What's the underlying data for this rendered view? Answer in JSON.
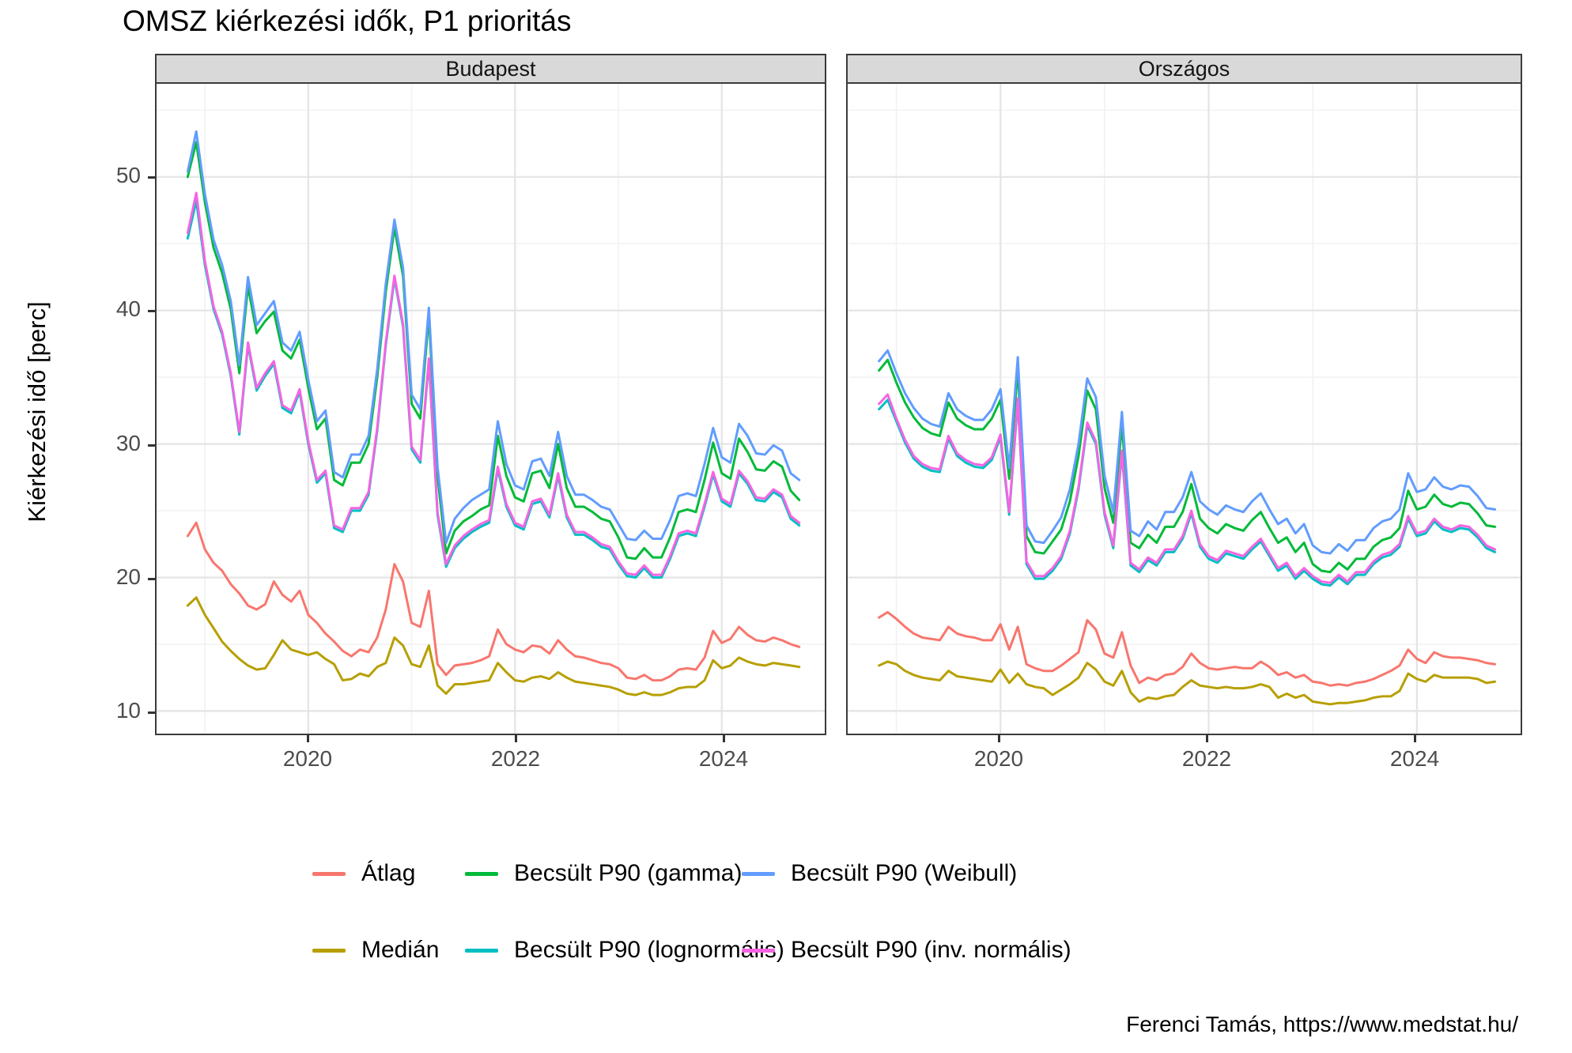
{
  "title": "OMSZ kiérkezési idők, P1 prioritás",
  "caption": "Ferenci Tamás, https://www.medstat.hu/",
  "y_axis": {
    "label": "Kiérkezési idő [perc]",
    "ticks": [
      10,
      20,
      30,
      40,
      50
    ],
    "minor_ticks": [
      15,
      25,
      35,
      45,
      55
    ],
    "range": [
      8.3,
      57
    ]
  },
  "x_axis": {
    "ticks": [
      2020,
      2022,
      2024
    ],
    "minor_ticks": [
      2019,
      2021,
      2023
    ]
  },
  "legend": {
    "items": [
      {
        "key": "atlag",
        "label": "Átlag",
        "color": "#F8766D"
      },
      {
        "key": "median",
        "label": "Medián",
        "color": "#B79F00"
      },
      {
        "key": "gamma",
        "label": "Becsült P90 (gamma)",
        "color": "#00BA38"
      },
      {
        "key": "lognormalis",
        "label": "Becsült P90 (lognormális)",
        "color": "#00BFC4"
      },
      {
        "key": "weibull",
        "label": "Becsült P90 (Weibull)",
        "color": "#619CFF"
      },
      {
        "key": "invnormalis",
        "label": "Becsült P90 (inv. normális)",
        "color": "#F564E3"
      }
    ]
  },
  "chart_data": {
    "type": "line",
    "title": "OMSZ kiérkezési idők, P1 prioritás",
    "ylabel": "Kiérkezési idő [perc]",
    "ylim": [
      8.3,
      57
    ],
    "grid": true,
    "legend_position": "bottom",
    "series_order": [
      "atlag",
      "median",
      "gamma",
      "lognormalis",
      "weibull",
      "invnormalis"
    ],
    "months": [
      "2018-11",
      "2018-12",
      "2019-01",
      "2019-02",
      "2019-03",
      "2019-04",
      "2019-05",
      "2019-06",
      "2019-07",
      "2019-08",
      "2019-09",
      "2019-10",
      "2019-11",
      "2019-12",
      "2020-01",
      "2020-02",
      "2020-03",
      "2020-04",
      "2020-05",
      "2020-06",
      "2020-07",
      "2020-08",
      "2020-09",
      "2020-10",
      "2020-11",
      "2020-12",
      "2021-01",
      "2021-02",
      "2021-03",
      "2021-04",
      "2021-05",
      "2021-06",
      "2021-07",
      "2021-08",
      "2021-09",
      "2021-10",
      "2021-11",
      "2021-12",
      "2022-01",
      "2022-02",
      "2022-03",
      "2022-04",
      "2022-05",
      "2022-06",
      "2022-07",
      "2022-08",
      "2022-09",
      "2022-10",
      "2022-11",
      "2022-12",
      "2023-01",
      "2023-02",
      "2023-03",
      "2023-04",
      "2023-05",
      "2023-06",
      "2023-07",
      "2023-08",
      "2023-09",
      "2023-10",
      "2023-11",
      "2023-12",
      "2024-01",
      "2024-02",
      "2024-03",
      "2024-04",
      "2024-05",
      "2024-06",
      "2024-07",
      "2024-08",
      "2024-09",
      "2024-10"
    ],
    "facets": [
      {
        "name": "Budapest",
        "series": {
          "atlag": [
            23.1,
            24.1,
            22.1,
            21.1,
            20.5,
            19.5,
            18.8,
            17.9,
            17.6,
            18.0,
            19.7,
            18.7,
            18.2,
            19.0,
            17.2,
            16.6,
            15.8,
            15.2,
            14.5,
            14.1,
            14.6,
            14.4,
            15.5,
            17.6,
            21.0,
            19.7,
            16.6,
            16.3,
            19.0,
            13.5,
            12.7,
            13.4,
            13.5,
            13.6,
            13.8,
            14.1,
            16.1,
            15.0,
            14.6,
            14.4,
            14.9,
            14.8,
            14.3,
            15.3,
            14.6,
            14.1,
            14.0,
            13.8,
            13.6,
            13.5,
            13.2,
            12.5,
            12.4,
            12.7,
            12.3,
            12.3,
            12.6,
            13.1,
            13.2,
            13.1,
            14.0,
            16.0,
            15.1,
            15.4,
            16.3,
            15.7,
            15.3,
            15.2,
            15.5,
            15.3,
            15.0,
            14.8
          ],
          "median": [
            17.9,
            18.5,
            17.2,
            16.2,
            15.2,
            14.5,
            13.9,
            13.4,
            13.1,
            13.2,
            14.2,
            15.3,
            14.6,
            14.4,
            14.2,
            14.4,
            13.9,
            13.5,
            12.3,
            12.4,
            12.8,
            12.6,
            13.3,
            13.6,
            15.5,
            14.9,
            13.5,
            13.3,
            14.9,
            11.9,
            11.3,
            12.0,
            12.0,
            12.1,
            12.2,
            12.3,
            13.6,
            12.9,
            12.3,
            12.2,
            12.5,
            12.6,
            12.4,
            12.9,
            12.5,
            12.2,
            12.1,
            12.0,
            11.9,
            11.8,
            11.6,
            11.3,
            11.2,
            11.4,
            11.2,
            11.2,
            11.4,
            11.7,
            11.8,
            11.8,
            12.3,
            13.8,
            13.2,
            13.4,
            14.0,
            13.7,
            13.5,
            13.4,
            13.6,
            13.5,
            13.4,
            13.3
          ],
          "gamma": [
            50.0,
            52.6,
            48.1,
            44.7,
            42.8,
            40.1,
            35.3,
            41.8,
            38.3,
            39.2,
            39.9,
            37.0,
            36.4,
            37.8,
            34.2,
            31.1,
            31.9,
            27.3,
            26.9,
            28.6,
            28.6,
            30.0,
            35.0,
            41.4,
            46.2,
            42.6,
            33.0,
            31.9,
            39.6,
            27.6,
            21.8,
            23.5,
            24.2,
            24.6,
            25.1,
            25.4,
            30.6,
            27.6,
            26.0,
            25.7,
            27.8,
            28.0,
            26.7,
            30.0,
            26.7,
            25.3,
            25.3,
            24.9,
            24.4,
            24.2,
            23.0,
            21.5,
            21.4,
            22.2,
            21.5,
            21.5,
            23.0,
            24.9,
            25.1,
            24.9,
            27.3,
            30.1,
            27.8,
            27.4,
            30.4,
            29.4,
            28.1,
            28.0,
            28.7,
            28.3,
            26.5,
            25.8
          ],
          "lognormalis": [
            45.4,
            48.2,
            43.4,
            40.1,
            38.2,
            35.1,
            30.7,
            37.4,
            34.0,
            35.1,
            36.0,
            32.7,
            32.3,
            33.9,
            30.0,
            27.1,
            27.8,
            23.7,
            23.4,
            25.0,
            25.0,
            26.2,
            31.0,
            37.4,
            42.4,
            38.8,
            29.6,
            28.6,
            36.2,
            24.7,
            20.8,
            22.2,
            22.9,
            23.4,
            23.8,
            24.1,
            28.1,
            25.3,
            23.9,
            23.6,
            25.5,
            25.7,
            24.5,
            27.6,
            24.5,
            23.2,
            23.2,
            22.8,
            22.3,
            22.1,
            21.0,
            20.1,
            20.0,
            20.7,
            20.0,
            20.0,
            21.4,
            23.1,
            23.3,
            23.1,
            25.3,
            27.7,
            25.7,
            25.3,
            27.8,
            27.0,
            25.8,
            25.7,
            26.4,
            26.0,
            24.4,
            23.9
          ],
          "weibull": [
            50.4,
            53.4,
            48.7,
            45.3,
            43.4,
            40.7,
            35.9,
            42.5,
            38.9,
            39.8,
            40.7,
            37.6,
            37.0,
            38.4,
            34.8,
            31.7,
            32.5,
            27.9,
            27.5,
            29.2,
            29.2,
            30.6,
            35.6,
            42.0,
            46.8,
            43.2,
            33.7,
            32.6,
            40.2,
            28.3,
            22.6,
            24.4,
            25.2,
            25.8,
            26.2,
            26.6,
            31.7,
            28.5,
            26.9,
            26.6,
            28.7,
            28.9,
            27.6,
            30.9,
            27.6,
            26.2,
            26.2,
            25.8,
            25.3,
            25.1,
            24.0,
            22.9,
            22.8,
            23.5,
            22.9,
            22.9,
            24.3,
            26.1,
            26.3,
            26.1,
            28.5,
            31.2,
            29.0,
            28.6,
            31.5,
            30.6,
            29.3,
            29.2,
            29.9,
            29.5,
            27.8,
            27.3
          ],
          "invnormalis": [
            45.8,
            48.8,
            43.7,
            40.3,
            38.4,
            35.3,
            30.9,
            37.6,
            34.2,
            35.3,
            36.2,
            32.9,
            32.5,
            34.1,
            30.2,
            27.3,
            28.0,
            23.9,
            23.6,
            25.2,
            25.2,
            26.4,
            31.2,
            37.6,
            42.6,
            39.0,
            29.8,
            28.8,
            36.4,
            24.9,
            21.0,
            22.4,
            23.1,
            23.6,
            24.0,
            24.3,
            28.3,
            25.5,
            24.1,
            23.8,
            25.7,
            25.9,
            24.7,
            27.8,
            24.7,
            23.4,
            23.4,
            23.0,
            22.5,
            22.3,
            21.2,
            20.3,
            20.2,
            20.9,
            20.2,
            20.2,
            21.6,
            23.3,
            23.5,
            23.3,
            25.5,
            27.9,
            25.9,
            25.5,
            28.0,
            27.2,
            26.0,
            25.9,
            26.6,
            26.2,
            24.6,
            24.1
          ]
        }
      },
      {
        "name": "Országos",
        "series": {
          "atlag": [
            17.0,
            17.4,
            16.9,
            16.3,
            15.8,
            15.5,
            15.4,
            15.3,
            16.3,
            15.8,
            15.6,
            15.5,
            15.3,
            15.3,
            16.5,
            14.6,
            16.3,
            13.5,
            13.2,
            13.0,
            13.0,
            13.4,
            13.9,
            14.4,
            16.8,
            16.1,
            14.3,
            14.0,
            15.9,
            13.4,
            12.1,
            12.5,
            12.3,
            12.7,
            12.8,
            13.3,
            14.3,
            13.6,
            13.2,
            13.1,
            13.2,
            13.3,
            13.2,
            13.2,
            13.7,
            13.3,
            12.7,
            12.9,
            12.5,
            12.7,
            12.2,
            12.1,
            11.9,
            12.0,
            11.9,
            12.1,
            12.2,
            12.4,
            12.7,
            13.0,
            13.4,
            14.6,
            13.9,
            13.6,
            14.4,
            14.1,
            14.0,
            14.0,
            13.9,
            13.8,
            13.6,
            13.5
          ],
          "median": [
            13.4,
            13.7,
            13.5,
            13.0,
            12.7,
            12.5,
            12.4,
            12.3,
            13.0,
            12.6,
            12.5,
            12.4,
            12.3,
            12.2,
            13.1,
            12.1,
            12.8,
            12.0,
            11.8,
            11.7,
            11.2,
            11.6,
            12.0,
            12.5,
            13.6,
            13.1,
            12.2,
            11.9,
            13.0,
            11.4,
            10.7,
            11.0,
            10.9,
            11.1,
            11.2,
            11.8,
            12.3,
            11.9,
            11.8,
            11.7,
            11.8,
            11.7,
            11.7,
            11.8,
            12.0,
            11.8,
            11.0,
            11.3,
            11.0,
            11.2,
            10.7,
            10.6,
            10.5,
            10.6,
            10.6,
            10.7,
            10.8,
            11.0,
            11.1,
            11.1,
            11.5,
            12.8,
            12.4,
            12.2,
            12.7,
            12.5,
            12.5,
            12.5,
            12.5,
            12.4,
            12.1,
            12.2
          ],
          "gamma": [
            35.5,
            36.3,
            34.6,
            33.1,
            32.0,
            31.2,
            30.8,
            30.6,
            33.1,
            31.9,
            31.4,
            31.1,
            31.1,
            31.9,
            33.3,
            27.4,
            35.6,
            23.1,
            21.9,
            21.8,
            22.7,
            23.6,
            25.7,
            29.1,
            34.0,
            32.6,
            26.7,
            24.1,
            31.5,
            22.6,
            22.2,
            23.2,
            22.6,
            23.8,
            23.8,
            24.9,
            27.0,
            24.4,
            23.7,
            23.3,
            24.0,
            23.7,
            23.5,
            24.3,
            24.9,
            23.7,
            22.6,
            23.0,
            21.9,
            22.6,
            21.0,
            20.5,
            20.4,
            21.1,
            20.6,
            21.4,
            21.4,
            22.3,
            22.8,
            23.0,
            23.7,
            26.5,
            25.1,
            25.3,
            26.2,
            25.5,
            25.3,
            25.6,
            25.5,
            24.8,
            23.9,
            23.8
          ],
          "lognormalis": [
            32.6,
            33.3,
            31.7,
            30.1,
            28.9,
            28.3,
            28.0,
            27.9,
            30.4,
            29.1,
            28.6,
            28.3,
            28.2,
            28.8,
            30.5,
            24.7,
            33.2,
            21.0,
            19.9,
            19.9,
            20.5,
            21.4,
            23.3,
            26.6,
            31.4,
            30.0,
            24.7,
            22.2,
            29.3,
            20.9,
            20.4,
            21.3,
            20.9,
            21.9,
            21.9,
            22.9,
            24.8,
            22.3,
            21.4,
            21.1,
            21.8,
            21.6,
            21.4,
            22.1,
            22.7,
            21.6,
            20.5,
            20.9,
            19.9,
            20.5,
            19.9,
            19.5,
            19.4,
            20.0,
            19.5,
            20.2,
            20.2,
            21.0,
            21.5,
            21.7,
            22.3,
            24.4,
            23.1,
            23.3,
            24.2,
            23.6,
            23.4,
            23.7,
            23.6,
            23.0,
            22.2,
            21.9
          ],
          "weibull": [
            36.2,
            37.0,
            35.3,
            33.8,
            32.7,
            31.9,
            31.5,
            31.3,
            33.8,
            32.6,
            32.1,
            31.8,
            31.8,
            32.6,
            34.1,
            28.2,
            36.5,
            23.9,
            22.7,
            22.6,
            23.5,
            24.5,
            26.6,
            30.0,
            34.9,
            33.5,
            27.6,
            24.9,
            32.4,
            23.5,
            23.1,
            24.2,
            23.6,
            24.9,
            24.9,
            26.0,
            27.9,
            25.7,
            25.1,
            24.7,
            25.4,
            25.1,
            24.9,
            25.7,
            26.3,
            25.1,
            24.0,
            24.4,
            23.3,
            24.0,
            22.4,
            21.9,
            21.8,
            22.5,
            22.0,
            22.8,
            22.8,
            23.7,
            24.2,
            24.4,
            25.1,
            27.8,
            26.4,
            26.6,
            27.5,
            26.8,
            26.6,
            26.9,
            26.8,
            26.1,
            25.2,
            25.1
          ],
          "invnormalis": [
            33.0,
            33.7,
            31.9,
            30.3,
            29.1,
            28.5,
            28.2,
            28.1,
            30.6,
            29.3,
            28.8,
            28.5,
            28.4,
            29.0,
            30.7,
            24.9,
            33.4,
            21.2,
            20.1,
            20.1,
            20.7,
            21.6,
            23.5,
            26.8,
            31.6,
            30.2,
            24.9,
            22.4,
            29.5,
            21.1,
            20.6,
            21.5,
            21.1,
            22.1,
            22.1,
            23.1,
            25.0,
            22.5,
            21.6,
            21.3,
            22.0,
            21.8,
            21.6,
            22.3,
            22.9,
            21.8,
            20.7,
            21.1,
            20.1,
            20.7,
            20.1,
            19.7,
            19.6,
            20.2,
            19.7,
            20.4,
            20.4,
            21.2,
            21.7,
            21.9,
            22.5,
            24.6,
            23.3,
            23.5,
            24.4,
            23.8,
            23.6,
            23.9,
            23.8,
            23.2,
            22.4,
            22.1
          ]
        }
      }
    ]
  }
}
